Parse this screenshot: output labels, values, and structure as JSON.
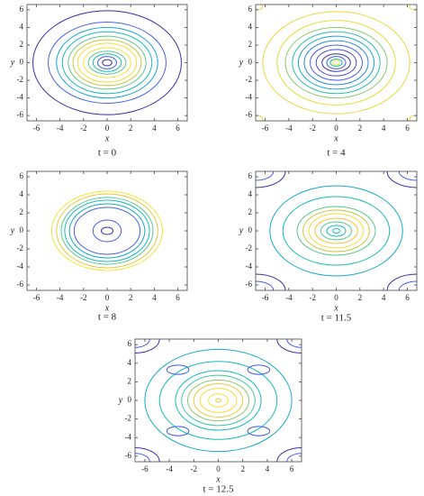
{
  "chart_data": [
    {
      "type": "contour",
      "caption": "t = 0",
      "x_label": "x",
      "y_label": "y",
      "xlim": [
        -6.8,
        6.8
      ],
      "ylim": [
        -6.6,
        6.6
      ],
      "xticks": [
        -6,
        -4,
        -2,
        0,
        2,
        4,
        6
      ],
      "yticks": [
        -6,
        -4,
        -2,
        0,
        2,
        4,
        6
      ],
      "contours": [
        {
          "cx": 0,
          "cy": 0,
          "rx": 6.3,
          "ry": 5.9,
          "color": "#3b2fa8"
        },
        {
          "cx": 0,
          "cy": 0,
          "rx": 5.0,
          "ry": 4.6,
          "color": "#4660e8"
        },
        {
          "cx": 0,
          "cy": 0,
          "rx": 4.3,
          "ry": 4.0,
          "color": "#1fa3d6"
        },
        {
          "cx": 0,
          "cy": 0,
          "rx": 3.8,
          "ry": 3.5,
          "color": "#18bcb8"
        },
        {
          "cx": 0,
          "cy": 0,
          "rx": 3.3,
          "ry": 3.0,
          "color": "#5cc88a"
        },
        {
          "cx": 0,
          "cy": 0,
          "rx": 2.9,
          "ry": 2.6,
          "color": "#c7c843"
        },
        {
          "cx": 0,
          "cy": 0,
          "rx": 2.5,
          "ry": 2.2,
          "color": "#f7dd3a"
        },
        {
          "cx": 0,
          "cy": 0,
          "rx": 2.0,
          "ry": 1.7,
          "color": "#f2e43a"
        },
        {
          "cx": 0,
          "cy": 0,
          "rx": 1.6,
          "ry": 1.3,
          "color": "#5cc88a"
        },
        {
          "cx": 0,
          "cy": 0,
          "rx": 1.2,
          "ry": 1.0,
          "color": "#18bcb8"
        },
        {
          "cx": 0,
          "cy": 0,
          "rx": 0.8,
          "ry": 0.7,
          "color": "#4660e8"
        },
        {
          "cx": 0,
          "cy": 0,
          "rx": 0.4,
          "ry": 0.35,
          "color": "#3b2fa8"
        }
      ]
    },
    {
      "type": "contour",
      "caption": "t = 4",
      "x_label": "x",
      "y_label": "y",
      "xlim": [
        -6.8,
        6.8
      ],
      "ylim": [
        -6.6,
        6.6
      ],
      "xticks": [
        -6,
        -4,
        -2,
        0,
        2,
        4,
        6
      ],
      "yticks": [
        -6,
        -4,
        -2,
        0,
        2,
        4,
        6
      ],
      "contours": [
        {
          "cx": 0,
          "cy": 0,
          "rx": 6.2,
          "ry": 5.8,
          "color": "#f2d53c"
        },
        {
          "cx": 0,
          "cy": 0,
          "rx": 5.0,
          "ry": 4.8,
          "color": "#e8dc3a"
        },
        {
          "cx": 0,
          "cy": 0,
          "rx": 4.3,
          "ry": 4.0,
          "color": "#8cc870"
        },
        {
          "cx": 0,
          "cy": 0,
          "rx": 3.7,
          "ry": 3.5,
          "color": "#2ebfa8"
        },
        {
          "cx": 0,
          "cy": 0,
          "rx": 3.2,
          "ry": 3.0,
          "color": "#17aac8"
        },
        {
          "cx": 0,
          "cy": 0,
          "rx": 2.7,
          "ry": 2.5,
          "color": "#2b8ae0"
        },
        {
          "cx": 0,
          "cy": 0,
          "rx": 2.2,
          "ry": 2.0,
          "color": "#4660e8"
        },
        {
          "cx": 0,
          "cy": 0,
          "rx": 1.7,
          "ry": 1.5,
          "color": "#4a46d8"
        },
        {
          "cx": 0,
          "cy": 0,
          "rx": 1.2,
          "ry": 1.0,
          "color": "#3b2fa8"
        },
        {
          "cx": 0,
          "cy": 0,
          "rx": 0.8,
          "ry": 0.7,
          "color": "#4660e8"
        },
        {
          "cx": 0,
          "cy": 0,
          "rx": 0.5,
          "ry": 0.4,
          "color": "#18bcb8"
        },
        {
          "cx": 0,
          "cy": 0,
          "rx": 0.3,
          "ry": 0.25,
          "color": "#f7dd3a"
        },
        {
          "cx": -6.6,
          "cy": 6.4,
          "rx": 0.4,
          "ry": 0.4,
          "color": "#f2d53c"
        },
        {
          "cx": 6.6,
          "cy": 6.4,
          "rx": 0.4,
          "ry": 0.4,
          "color": "#f2d53c"
        },
        {
          "cx": -6.6,
          "cy": -6.4,
          "rx": 0.4,
          "ry": 0.4,
          "color": "#f2d53c"
        },
        {
          "cx": 6.6,
          "cy": -6.4,
          "rx": 0.4,
          "ry": 0.4,
          "color": "#f2d53c"
        }
      ]
    },
    {
      "type": "contour",
      "caption": "t = 8",
      "x_label": "x",
      "y_label": "y",
      "xlim": [
        -6.8,
        6.8
      ],
      "ylim": [
        -6.6,
        6.6
      ],
      "xticks": [
        -6,
        -4,
        -2,
        0,
        2,
        4,
        6
      ],
      "yticks": [
        -6,
        -4,
        -2,
        0,
        2,
        4,
        6
      ],
      "contours": [
        {
          "cx": 0,
          "cy": 0,
          "rx": 4.7,
          "ry": 4.4,
          "color": "#f2e43a"
        },
        {
          "cx": 0,
          "cy": 0,
          "rx": 4.3,
          "ry": 4.1,
          "color": "#e8c83a"
        },
        {
          "cx": 0,
          "cy": 0,
          "rx": 3.9,
          "ry": 3.7,
          "color": "#5cc88a"
        },
        {
          "cx": 0,
          "cy": 0,
          "rx": 3.6,
          "ry": 3.4,
          "color": "#18bcb8"
        },
        {
          "cx": 0,
          "cy": 0,
          "rx": 3.2,
          "ry": 3.0,
          "color": "#17aac8"
        },
        {
          "cx": 0,
          "cy": 0,
          "rx": 2.8,
          "ry": 2.6,
          "color": "#4660e8"
        },
        {
          "cx": 0,
          "cy": 0,
          "rx": 1.2,
          "ry": 1.2,
          "color": "#4660e8"
        },
        {
          "cx": 0,
          "cy": 0,
          "rx": 0.5,
          "ry": 0.4,
          "color": "#3b2fa8"
        }
      ]
    },
    {
      "type": "contour",
      "caption": "t = 11.5",
      "x_label": "x",
      "y_label": "y",
      "xlim": [
        -6.8,
        6.8
      ],
      "ylim": [
        -6.6,
        6.6
      ],
      "xticks": [
        -6,
        -4,
        -2,
        0,
        2,
        4,
        6
      ],
      "yticks": [
        -6,
        -4,
        -2,
        0,
        2,
        4,
        6
      ],
      "contours": [
        {
          "cx": 0,
          "cy": 0,
          "rx": 5.6,
          "ry": 5.0,
          "color": "#17aac8"
        },
        {
          "cx": 0,
          "cy": 0,
          "rx": 4.5,
          "ry": 3.8,
          "color": "#18bcb8"
        },
        {
          "cx": 0,
          "cy": 0,
          "rx": 3.3,
          "ry": 2.7,
          "color": "#5cc88a"
        },
        {
          "cx": 0,
          "cy": 0,
          "rx": 2.8,
          "ry": 2.3,
          "color": "#c7c843"
        },
        {
          "cx": 0,
          "cy": 0,
          "rx": 2.3,
          "ry": 1.9,
          "color": "#f7dd3a"
        },
        {
          "cx": 0,
          "cy": 0,
          "rx": 1.8,
          "ry": 1.4,
          "color": "#f2c43a"
        },
        {
          "cx": 0,
          "cy": 0,
          "rx": 1.3,
          "ry": 1.0,
          "color": "#5cc88a"
        },
        {
          "cx": 0,
          "cy": 0,
          "rx": 0.8,
          "ry": 0.6,
          "color": "#18bcb8"
        },
        {
          "cx": 0,
          "cy": 0,
          "rx": 0.3,
          "ry": 0.25,
          "color": "#18bcb8"
        },
        {
          "cx": -6.8,
          "cy": 6.6,
          "rx": 2.5,
          "ry": 1.8,
          "color": "#3b2fa8"
        },
        {
          "cx": 6.8,
          "cy": 6.6,
          "rx": 2.5,
          "ry": 1.8,
          "color": "#3b2fa8"
        },
        {
          "cx": -6.8,
          "cy": -6.6,
          "rx": 2.5,
          "ry": 1.8,
          "color": "#3b2fa8"
        },
        {
          "cx": 6.8,
          "cy": -6.6,
          "rx": 2.5,
          "ry": 1.8,
          "color": "#3b2fa8"
        },
        {
          "cx": -6.8,
          "cy": 6.6,
          "rx": 1.5,
          "ry": 1.0,
          "color": "#4660e8"
        },
        {
          "cx": 6.8,
          "cy": 6.6,
          "rx": 1.5,
          "ry": 1.0,
          "color": "#4660e8"
        },
        {
          "cx": -6.8,
          "cy": -6.6,
          "rx": 1.5,
          "ry": 1.0,
          "color": "#4660e8"
        },
        {
          "cx": 6.8,
          "cy": -6.6,
          "rx": 1.5,
          "ry": 1.0,
          "color": "#4660e8"
        }
      ]
    },
    {
      "type": "contour",
      "caption": "t = 12.5",
      "x_label": "x",
      "y_label": "y",
      "xlim": [
        -6.8,
        6.8
      ],
      "ylim": [
        -6.6,
        6.6
      ],
      "xticks": [
        -6,
        -4,
        -2,
        0,
        2,
        4,
        6
      ],
      "yticks": [
        -6,
        -4,
        -2,
        0,
        2,
        4,
        6
      ],
      "contours": [
        {
          "cx": 0,
          "cy": 0,
          "rx": 6.0,
          "ry": 5.5,
          "color": "#17aac8"
        },
        {
          "cx": 0,
          "cy": 0,
          "rx": 4.8,
          "ry": 4.2,
          "color": "#18bcb8"
        },
        {
          "cx": 0,
          "cy": 0,
          "rx": 3.5,
          "ry": 3.2,
          "color": "#18bcb8"
        },
        {
          "cx": 0,
          "cy": 0,
          "rx": 3.0,
          "ry": 2.7,
          "color": "#3ec9a0"
        },
        {
          "cx": 0,
          "cy": 0,
          "rx": 2.5,
          "ry": 2.2,
          "color": "#8cc870"
        },
        {
          "cx": 0,
          "cy": 0,
          "rx": 2.0,
          "ry": 1.8,
          "color": "#e8c83a"
        },
        {
          "cx": 0,
          "cy": 0,
          "rx": 1.5,
          "ry": 1.3,
          "color": "#f7dd3a"
        },
        {
          "cx": 0,
          "cy": 0,
          "rx": 0.8,
          "ry": 0.7,
          "color": "#f2e43a"
        },
        {
          "cx": 0,
          "cy": 0,
          "rx": 0.2,
          "ry": 0.2,
          "color": "#e8c83a"
        },
        {
          "cx": -3.3,
          "cy": 3.3,
          "rx": 0.9,
          "ry": 0.5,
          "color": "#3f5be0"
        },
        {
          "cx": 3.3,
          "cy": 3.3,
          "rx": 0.9,
          "ry": 0.5,
          "color": "#3f5be0"
        },
        {
          "cx": -3.3,
          "cy": -3.3,
          "rx": 0.9,
          "ry": 0.5,
          "color": "#3f5be0"
        },
        {
          "cx": 3.3,
          "cy": -3.3,
          "rx": 0.9,
          "ry": 0.5,
          "color": "#3f5be0"
        },
        {
          "cx": -6.8,
          "cy": 6.6,
          "rx": 2.0,
          "ry": 1.5,
          "color": "#3b2fa8"
        },
        {
          "cx": 6.8,
          "cy": 6.6,
          "rx": 2.0,
          "ry": 1.5,
          "color": "#3b2fa8"
        },
        {
          "cx": -6.8,
          "cy": -6.6,
          "rx": 2.0,
          "ry": 1.5,
          "color": "#3b2fa8"
        },
        {
          "cx": 6.8,
          "cy": -6.6,
          "rx": 2.0,
          "ry": 1.5,
          "color": "#3b2fa8"
        },
        {
          "cx": -6.8,
          "cy": 6.6,
          "rx": 1.2,
          "ry": 0.9,
          "color": "#4660e8"
        },
        {
          "cx": 6.8,
          "cy": 6.6,
          "rx": 1.2,
          "ry": 0.9,
          "color": "#4660e8"
        },
        {
          "cx": -6.8,
          "cy": -6.6,
          "rx": 1.2,
          "ry": 0.9,
          "color": "#4660e8"
        },
        {
          "cx": 6.8,
          "cy": -6.6,
          "rx": 1.2,
          "ry": 0.9,
          "color": "#4660e8"
        }
      ]
    }
  ]
}
